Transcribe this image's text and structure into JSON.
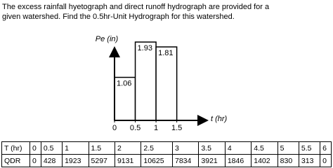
{
  "text": [
    "The excess rainfall hyetograph and direct runoff hydrograph are provided for a",
    "given watershed. Find the 0.5hr-Unit Hydrograph for this watershed."
  ],
  "chart_data": {
    "type": "histogram",
    "y_label": "Pe (in)",
    "x_label": "t (hr)",
    "bins": [
      0,
      0.5,
      1,
      1.5
    ],
    "values": [
      1.06,
      1.93,
      1.81
    ],
    "xlim": [
      0,
      2.2
    ],
    "ylim": [
      0,
      2
    ],
    "xticks": [
      0,
      0.5,
      1,
      1.5
    ],
    "color": "#ffffff"
  },
  "table": {
    "rows": [
      [
        "T (hr)",
        0,
        0.5,
        1,
        1.5,
        2,
        2.5,
        3,
        3.5,
        4,
        4.5,
        5,
        5.5,
        6
      ],
      [
        "QDR",
        0,
        428,
        1923,
        5297,
        9131,
        10625,
        7834,
        3921,
        1846,
        1402,
        830,
        313,
        0
      ]
    ]
  }
}
